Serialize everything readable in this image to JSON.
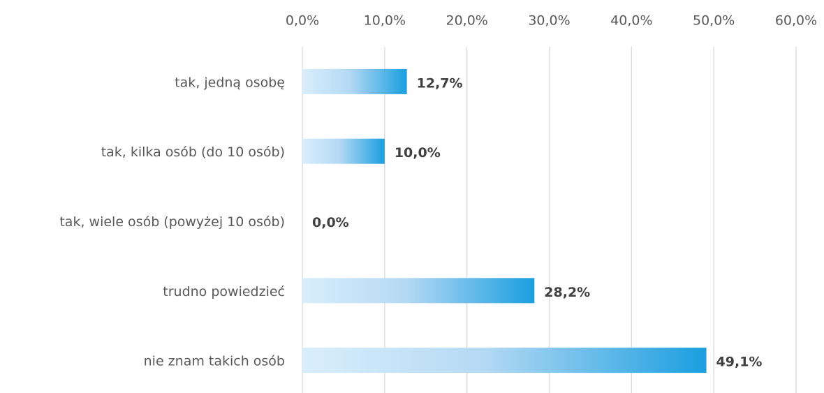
{
  "chart_data": {
    "type": "bar",
    "orientation": "horizontal",
    "categories": [
      "tak, jedną osobę",
      "tak, kilka osób (do 10 osób)",
      "tak, wiele osób (powyżej 10 osób)",
      "trudno powiedzieć",
      "nie znam takich osób"
    ],
    "values": [
      12.7,
      10.0,
      0.0,
      28.2,
      49.1
    ],
    "value_labels": [
      "12,7%",
      "10,0%",
      "0,0%",
      "28,2%",
      "49,1%"
    ],
    "color": "#1a9ee0",
    "xlim": [
      0,
      60
    ],
    "xticks": [
      {
        "value": 0,
        "label": "0,0%"
      },
      {
        "value": 10,
        "label": "10,0%"
      },
      {
        "value": 20,
        "label": "20,0%"
      },
      {
        "value": 30,
        "label": "30,0%"
      },
      {
        "value": 40,
        "label": "40,0%"
      },
      {
        "value": 50,
        "label": "50,0%"
      },
      {
        "value": 60,
        "label": "60,0%"
      }
    ],
    "grid": true
  }
}
